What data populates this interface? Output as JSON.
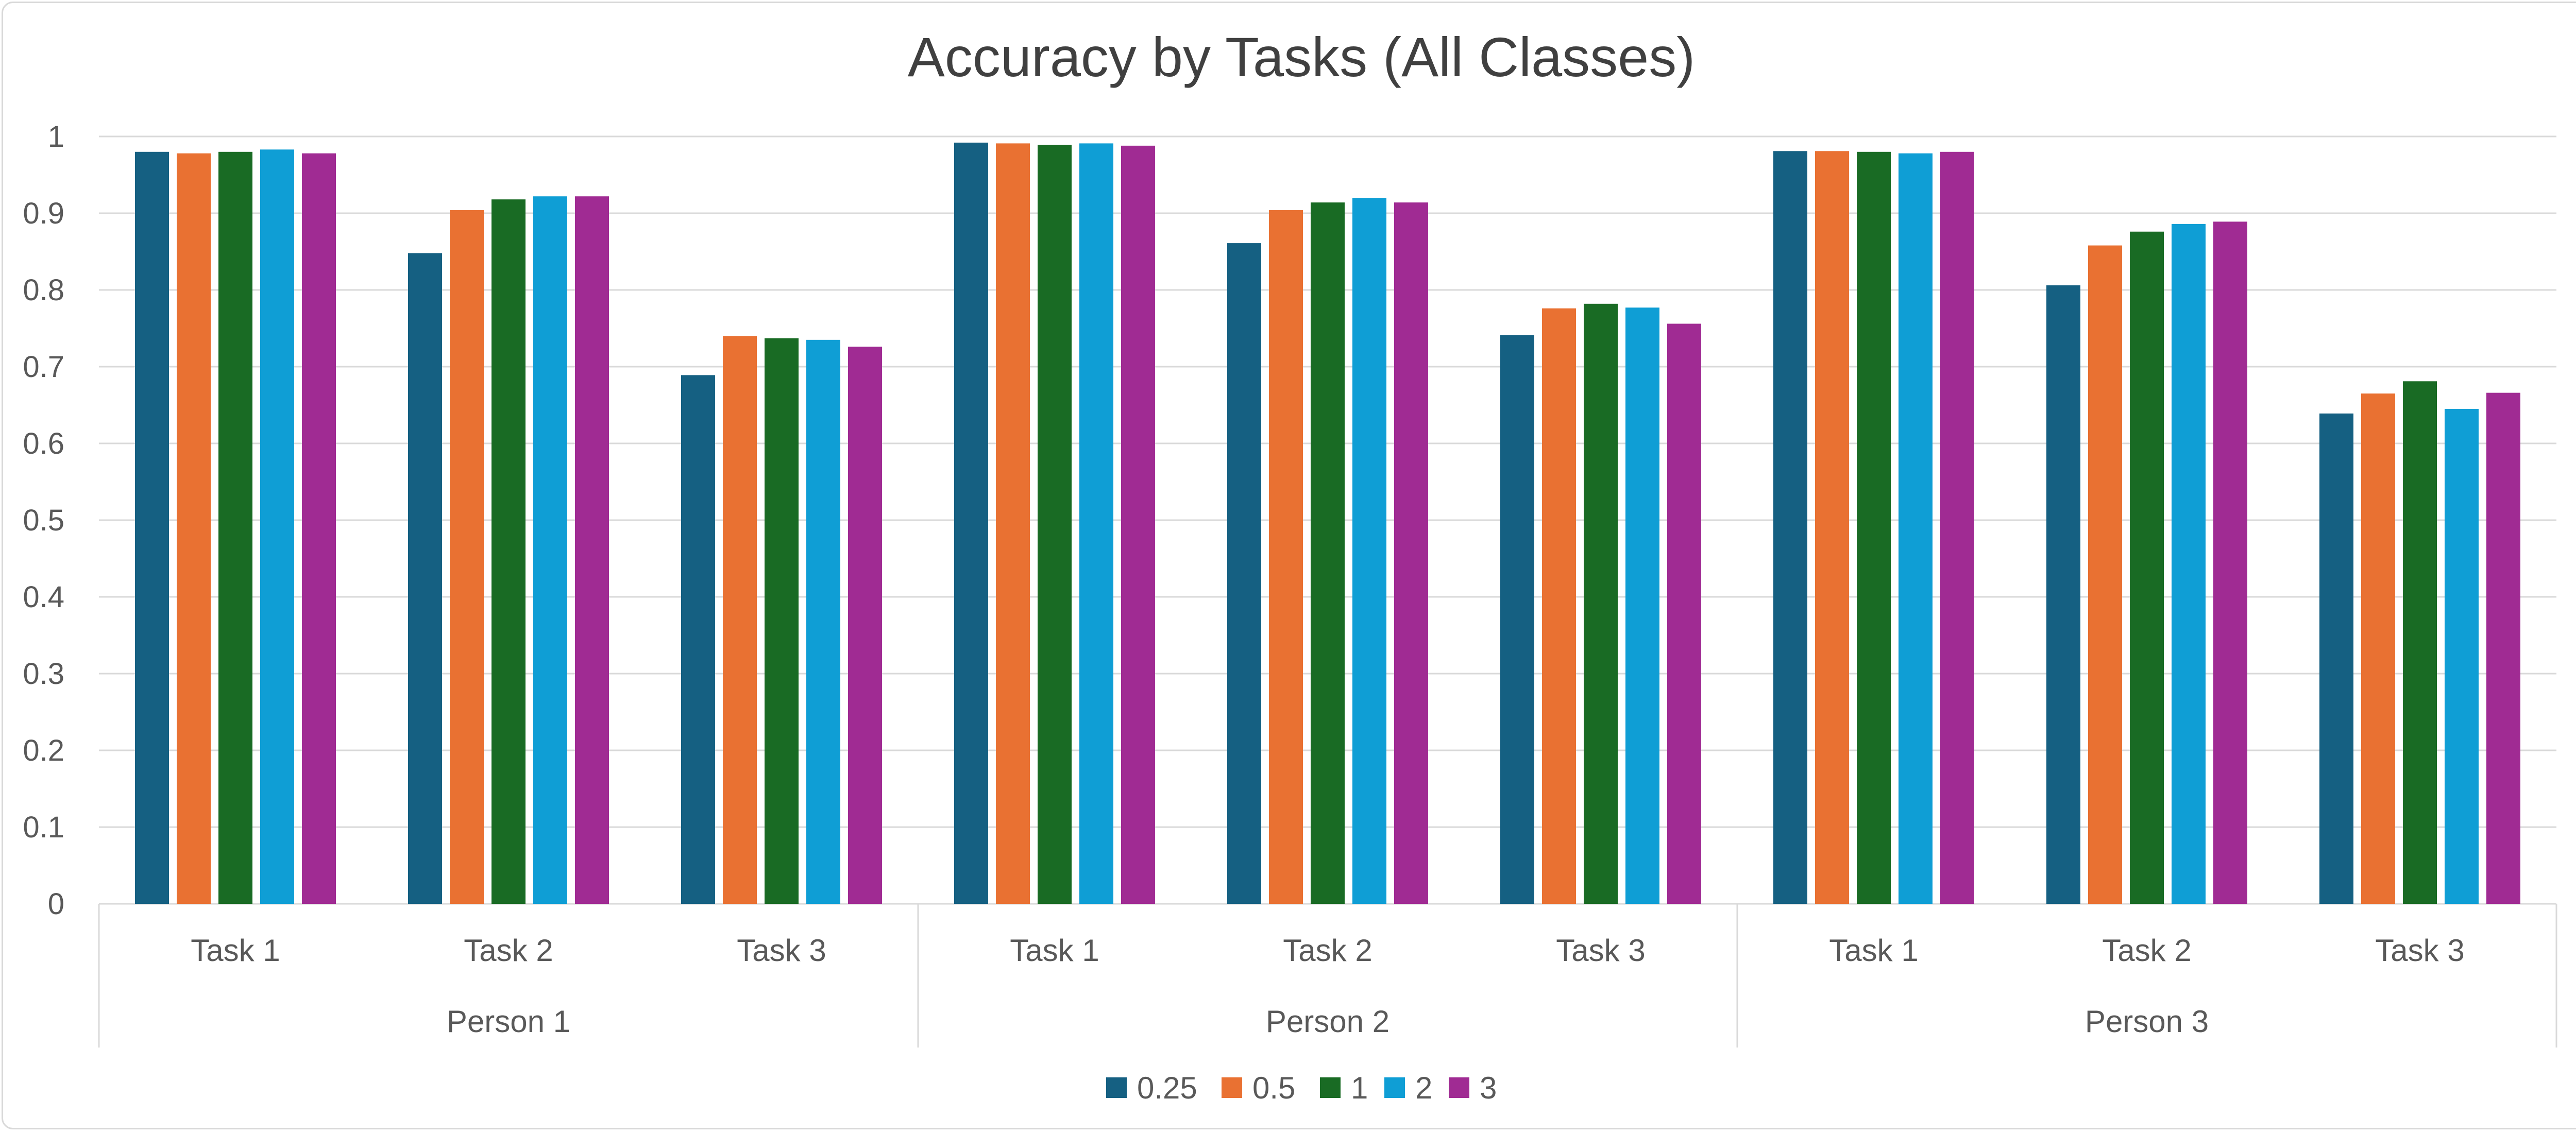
{
  "chart_data": {
    "type": "bar",
    "title": "Accuracy by Tasks (All Classes)",
    "xlabel": "",
    "ylabel": "",
    "ylim": [
      0,
      1
    ],
    "yticks": [
      "0",
      "0.1",
      "0.2",
      "0.3",
      "0.4",
      "0.5",
      "0.6",
      "0.7",
      "0.8",
      "0.9",
      "1"
    ],
    "grid": true,
    "legend_position": "bottom",
    "groups": [
      {
        "label": "Person 1",
        "categories": [
          "Task 1",
          "Task 2",
          "Task 3"
        ]
      },
      {
        "label": "Person 2",
        "categories": [
          "Task 1",
          "Task 2",
          "Task 3"
        ]
      },
      {
        "label": "Person 3",
        "categories": [
          "Task 1",
          "Task 2",
          "Task 3"
        ]
      }
    ],
    "categories": [
      "Task 1",
      "Task 2",
      "Task 3",
      "Task 1",
      "Task 2",
      "Task 3",
      "Task 1",
      "Task 2",
      "Task 3"
    ],
    "series": [
      {
        "name": "0.25",
        "color": "#156082",
        "values": [
          0.98,
          0.848,
          0.689,
          0.992,
          0.861,
          0.741,
          0.981,
          0.806,
          0.639
        ]
      },
      {
        "name": "0.5",
        "color": "#E97132",
        "values": [
          0.978,
          0.904,
          0.74,
          0.991,
          0.904,
          0.776,
          0.981,
          0.858,
          0.665
        ]
      },
      {
        "name": "1",
        "color": "#196B24",
        "values": [
          0.98,
          0.918,
          0.737,
          0.989,
          0.914,
          0.782,
          0.98,
          0.876,
          0.681
        ]
      },
      {
        "name": "2",
        "color": "#0F9ED5",
        "values": [
          0.983,
          0.922,
          0.735,
          0.991,
          0.92,
          0.777,
          0.978,
          0.886,
          0.645
        ]
      },
      {
        "name": "3",
        "color": "#A02B93",
        "values": [
          0.978,
          0.922,
          0.726,
          0.988,
          0.914,
          0.756,
          0.98,
          0.889,
          0.666
        ]
      }
    ]
  },
  "colors": {
    "gridline": "#d9d9d9",
    "axis_text": "#595959",
    "title_text": "#404040",
    "frame_border": "#d9d9d9"
  }
}
